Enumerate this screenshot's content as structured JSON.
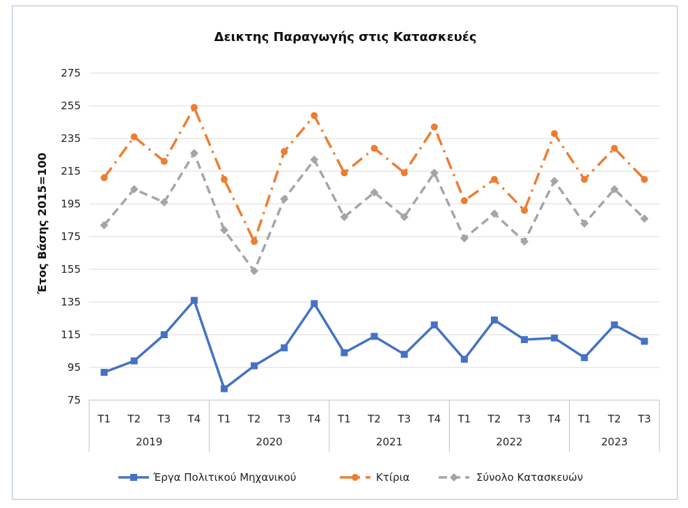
{
  "chart_data": {
    "type": "line",
    "title": "Δεικτης Παραγωγής στις Κατασκευές",
    "ylabel": "Έτος Βάσης 2015=100",
    "xlabel": "",
    "ylim": [
      75,
      275
    ],
    "yticks": [
      75,
      95,
      115,
      135,
      155,
      175,
      195,
      215,
      235,
      255,
      275
    ],
    "grid": true,
    "legend_position": "bottom",
    "categories": [
      "T1",
      "T2",
      "T3",
      "T4",
      "T1",
      "T2",
      "T3",
      "T4",
      "T1",
      "T2",
      "T3",
      "T4",
      "T1",
      "T2",
      "T3",
      "T4",
      "T1",
      "T2",
      "T3"
    ],
    "groups": [
      {
        "label": "2019",
        "count": 4
      },
      {
        "label": "2020",
        "count": 4
      },
      {
        "label": "2021",
        "count": 4
      },
      {
        "label": "2022",
        "count": 4
      },
      {
        "label": "2023",
        "count": 3
      }
    ],
    "series": [
      {
        "name": "Έργα Πολιτικού Μηχανικού",
        "color": "#4472c4",
        "style": "solid",
        "marker": "square",
        "values": [
          92,
          99,
          115,
          136,
          82,
          96,
          107,
          134,
          104,
          114,
          103,
          121,
          100,
          124,
          112,
          113,
          101,
          121,
          111
        ]
      },
      {
        "name": "Κτίρια",
        "color": "#ed7d31",
        "style": "dashdot",
        "marker": "circle",
        "values": [
          211,
          236,
          221,
          254,
          210,
          172,
          227,
          249,
          214,
          229,
          214,
          242,
          197,
          210,
          191,
          238,
          210,
          229,
          210
        ]
      },
      {
        "name": "Σύνολο Κατασκευών",
        "color": "#a5a5a5",
        "style": "dash",
        "marker": "diamond",
        "values": [
          182,
          204,
          196,
          226,
          179,
          154,
          198,
          222,
          187,
          202,
          187,
          214,
          174,
          189,
          172,
          209,
          183,
          204,
          186
        ]
      }
    ]
  }
}
